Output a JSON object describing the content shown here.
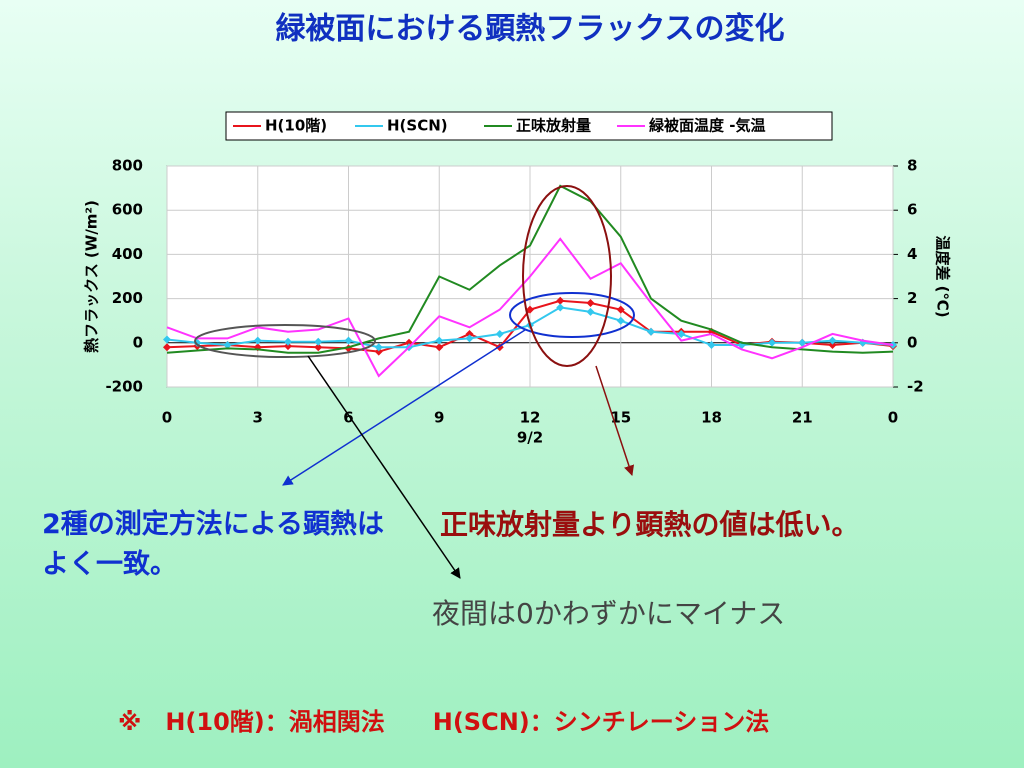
{
  "chart_data": {
    "type": "line",
    "title": "緑被面における顕熱フラックスの変化",
    "y_label": "熱フラックス (W/m²)",
    "y2_label": "温度差 (℃)",
    "x_annotation": "9/2",
    "x": [
      0,
      1,
      2,
      3,
      4,
      5,
      6,
      7,
      8,
      9,
      10,
      11,
      12,
      13,
      14,
      15,
      16,
      17,
      18,
      19,
      20,
      21,
      22,
      23,
      24
    ],
    "xlim": [
      0,
      24
    ],
    "xticks": [
      0,
      3,
      6,
      9,
      12,
      15,
      18,
      21,
      {
        "value": 24,
        "label": "0"
      }
    ],
    "ylim": [
      -200,
      800
    ],
    "yticks": [
      -200,
      0,
      200,
      400,
      600,
      800
    ],
    "y2lim": [
      -2,
      8
    ],
    "y2ticks": [
      -2,
      0,
      2,
      4,
      6,
      8
    ],
    "grid": true,
    "legend": "top",
    "series": [
      {
        "name": "H(10階)",
        "color": "#e8141c",
        "values": [
          -20,
          -15,
          -10,
          -20,
          -15,
          -20,
          -25,
          -40,
          0,
          -20,
          40,
          -20,
          150,
          190,
          180,
          150,
          50,
          50,
          50,
          -10,
          5,
          0,
          -10,
          0,
          -15
        ]
      },
      {
        "name": "H(SCN)",
        "color": "#33c8ee",
        "values": [
          15,
          0,
          -10,
          10,
          5,
          5,
          10,
          -20,
          -20,
          10,
          20,
          40,
          80,
          160,
          140,
          100,
          50,
          40,
          -10,
          -10,
          0,
          0,
          10,
          0,
          -10
        ]
      },
      {
        "name": "正味放射量",
        "color": "#218a21",
        "values": [
          -45,
          -35,
          -25,
          -30,
          -45,
          -45,
          -20,
          20,
          50,
          300,
          240,
          350,
          440,
          710,
          640,
          480,
          200,
          100,
          60,
          0,
          -20,
          -30,
          -40,
          -45,
          -40
        ]
      },
      {
        "name": "緑被面温度 -気温",
        "color": "#ff33ff",
        "axis": "y2",
        "values": [
          0.7,
          0.2,
          0.2,
          0.7,
          0.5,
          0.6,
          1.1,
          -1.5,
          -0.2,
          1.2,
          0.7,
          1.5,
          3,
          4.7,
          2.9,
          3.6,
          1.8,
          0.1,
          0.4,
          -0.3,
          -0.7,
          -0.2,
          0.4,
          0.1,
          -0.1
        ]
      }
    ]
  },
  "notes": {
    "agreement": "2種の測定方法による顕熱はよく一致。",
    "lower": "正味放射量より顕熱の値は低い。",
    "night": "夜間は0かわずかにマイナス",
    "footnote": "※　H(10階)：渦相関法　　H(SCN)：シンチレーション法"
  }
}
